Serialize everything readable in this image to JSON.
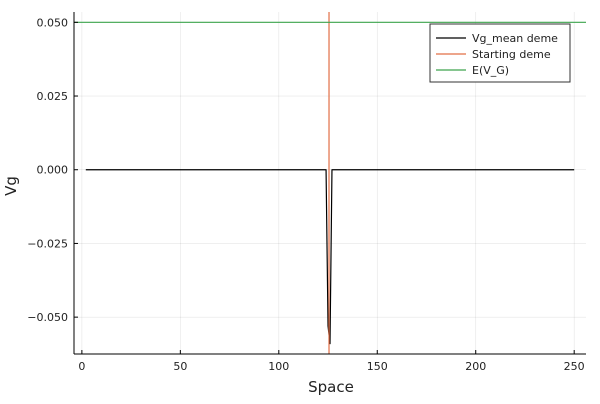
{
  "chart_data": {
    "type": "line",
    "xlabel": "Space",
    "ylabel": "Vg",
    "xlim": [
      -4,
      256
    ],
    "ylim": [
      -0.0625,
      0.0535
    ],
    "x_ticks": [
      0,
      50,
      100,
      150,
      200,
      250
    ],
    "x_tick_labels": [
      "0",
      "50",
      "100",
      "150",
      "200",
      "250"
    ],
    "y_ticks": [
      0.05,
      0.025,
      0.0,
      -0.025,
      -0.05
    ],
    "y_tick_labels": [
      "0.050",
      "0.025",
      "0.000",
      "−0.025",
      "−0.050"
    ],
    "grid": true,
    "legend_position": "top-right",
    "series": [
      {
        "name": "Vg_mean deme",
        "color": "#000000",
        "kind": "line",
        "x": [
          2,
          124,
          125,
          126,
          127,
          250
        ],
        "y": [
          0.0,
          0.0,
          -0.053,
          -0.059,
          0.0,
          0.0
        ]
      },
      {
        "name": "Starting deme",
        "color": "#e26f46",
        "kind": "vline",
        "x_value": 125.5
      },
      {
        "name": "E(V_G)",
        "color": "#3da44d",
        "kind": "hline",
        "y_value": 0.05
      }
    ]
  }
}
